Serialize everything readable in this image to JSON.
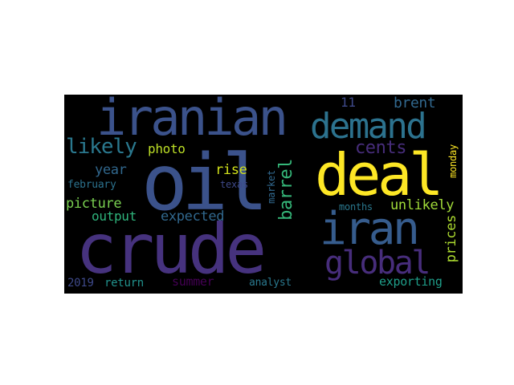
{
  "word_cloud": {
    "background": "#000000",
    "words": [
      {
        "text": "crude",
        "color": "#46327e"
      },
      {
        "text": "oil",
        "color": "#3b528b"
      },
      {
        "text": "iranian",
        "color": "#3b528b"
      },
      {
        "text": "deal",
        "color": "#fde725"
      },
      {
        "text": "demand",
        "color": "#2c728e"
      },
      {
        "text": "iran",
        "color": "#365c8d"
      },
      {
        "text": "global",
        "color": "#472d7b"
      },
      {
        "text": "barrel",
        "color": "#35b779"
      },
      {
        "text": "likely",
        "color": "#2a788e"
      },
      {
        "text": "cents",
        "color": "#472d7b"
      },
      {
        "text": "brent",
        "color": "#31688e"
      },
      {
        "text": "11",
        "color": "#3e4989"
      },
      {
        "text": "photo",
        "color": "#bddf26"
      },
      {
        "text": "year",
        "color": "#31688e"
      },
      {
        "text": "rise",
        "color": "#d2e21b"
      },
      {
        "text": "february",
        "color": "#2c728e"
      },
      {
        "text": "texas",
        "color": "#3e4989"
      },
      {
        "text": "market",
        "color": "#31688e"
      },
      {
        "text": "picture",
        "color": "#7ad151"
      },
      {
        "text": "expected",
        "color": "#31688e"
      },
      {
        "text": "output",
        "color": "#2fb47c"
      },
      {
        "text": "months",
        "color": "#2a788e"
      },
      {
        "text": "unlikely",
        "color": "#a0da39"
      },
      {
        "text": "monday",
        "color": "#fde725"
      },
      {
        "text": "prices",
        "color": "#addc30"
      },
      {
        "text": "2019",
        "color": "#3e4989"
      },
      {
        "text": "return",
        "color": "#21918c"
      },
      {
        "text": "summer",
        "color": "#440154"
      },
      {
        "text": "analyst",
        "color": "#2a788e"
      },
      {
        "text": "exporting",
        "color": "#1f9e89"
      }
    ]
  }
}
